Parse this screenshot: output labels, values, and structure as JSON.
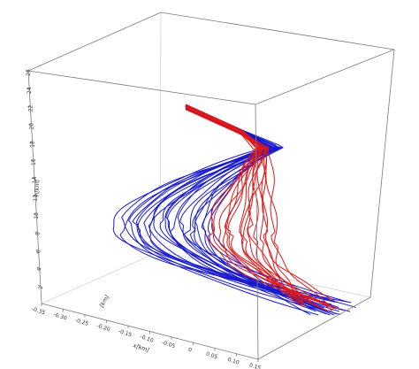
{
  "chart_data": {
    "type": "line",
    "projection": "3d",
    "title": "",
    "xlabel": "x[km]",
    "ylabel": "h[km]",
    "zlabel": "[km]",
    "xlim": [
      -0.35,
      0.15
    ],
    "hlim": [
      0,
      26
    ],
    "x_ticks": [
      "-0.35",
      "-0.30",
      "-0.25",
      "-0.20",
      "-0.15",
      "-0.10",
      "-0.05",
      "0",
      "0.05",
      "0.10",
      "0.15"
    ],
    "h_ticks": [
      "2",
      "4",
      "6",
      "8",
      "10",
      "12",
      "14",
      "16",
      "18",
      "20",
      "22",
      "24",
      "26"
    ],
    "grid": false,
    "legend": "none",
    "series": [
      {
        "color": "#1a1acc",
        "trajectories": 26,
        "h_top": 24,
        "h_bottom": 1,
        "x_min_range": [
          -0.33,
          -0.05
        ]
      },
      {
        "color": "#e01818",
        "trajectories": 18,
        "h_top": 24,
        "h_bottom": 1,
        "x_min_range": [
          -0.06,
          0.1
        ]
      }
    ]
  }
}
